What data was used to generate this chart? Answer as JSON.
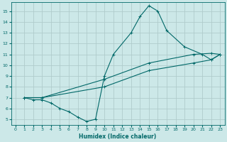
{
  "xlabel": "Humidex (Indice chaleur)",
  "bg_color": "#cce8e8",
  "grid_color": "#b0cccc",
  "line_color": "#006868",
  "xlim": [
    -0.5,
    23.5
  ],
  "ylim": [
    4.5,
    15.8
  ],
  "xticks": [
    0,
    1,
    2,
    3,
    4,
    5,
    6,
    7,
    8,
    9,
    10,
    11,
    12,
    13,
    14,
    15,
    16,
    17,
    18,
    19,
    20,
    21,
    22,
    23
  ],
  "yticks": [
    5,
    6,
    7,
    8,
    9,
    10,
    11,
    12,
    13,
    14,
    15
  ],
  "line1_x": [
    1,
    2,
    3,
    4,
    5,
    6,
    7,
    8,
    9,
    10,
    11,
    13,
    14,
    15,
    16,
    17,
    19,
    21,
    22,
    23
  ],
  "line1_y": [
    7,
    6.8,
    6.8,
    6.5,
    6.0,
    5.7,
    5.2,
    4.8,
    5.0,
    9.0,
    11.0,
    13.0,
    14.5,
    15.5,
    15.0,
    13.2,
    11.7,
    11.0,
    10.5,
    11.0
  ],
  "line2_x": [
    1,
    3,
    10,
    15,
    20,
    22,
    23
  ],
  "line2_y": [
    7,
    7,
    8.7,
    10.2,
    11.0,
    11.1,
    11.0
  ],
  "line3_x": [
    1,
    3,
    10,
    15,
    20,
    22,
    23
  ],
  "line3_y": [
    7,
    7,
    8.0,
    9.5,
    10.2,
    10.5,
    11.0
  ]
}
